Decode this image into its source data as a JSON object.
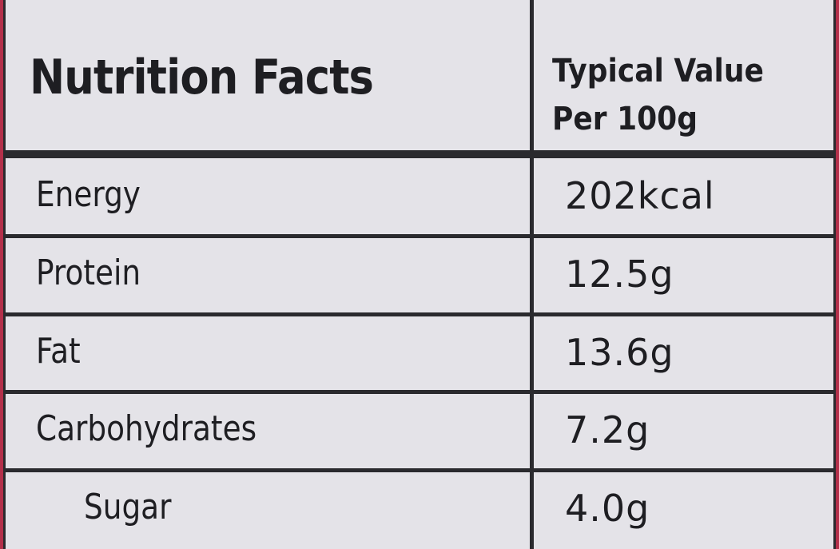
{
  "header": {
    "title": "Nutrition Facts",
    "value_heading": [
      "Typical Value",
      "Per 100g"
    ]
  },
  "table": {
    "rows": [
      [
        "Energy",
        "202kcal"
      ],
      [
        "Protein",
        "12.5g"
      ],
      [
        "Fat",
        "13.6g"
      ],
      [
        "Carbohydrates",
        "7.2g"
      ],
      [
        "Sugar",
        "4.0g"
      ]
    ],
    "indented_rows": [
      4
    ]
  }
}
